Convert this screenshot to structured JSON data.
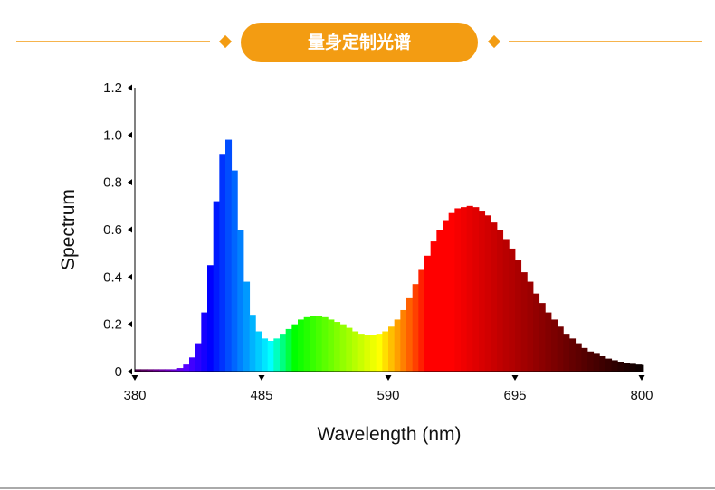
{
  "banner": {
    "title": "量身定制光谱"
  },
  "chart_data": {
    "type": "spectrum",
    "x_label": "Wavelength (nm)",
    "y_label": "Spectrum",
    "x": [
      380,
      385,
      390,
      395,
      400,
      405,
      410,
      415,
      420,
      425,
      430,
      435,
      440,
      445,
      450,
      455,
      460,
      465,
      470,
      475,
      480,
      485,
      490,
      495,
      500,
      505,
      510,
      515,
      520,
      525,
      530,
      535,
      540,
      545,
      550,
      555,
      560,
      565,
      570,
      575,
      580,
      585,
      590,
      595,
      600,
      605,
      610,
      615,
      620,
      625,
      630,
      635,
      640,
      645,
      650,
      655,
      660,
      665,
      670,
      675,
      680,
      685,
      690,
      695,
      700,
      705,
      710,
      715,
      720,
      725,
      730,
      735,
      740,
      745,
      750,
      755,
      760,
      765,
      770,
      775,
      780,
      785,
      790,
      795,
      800
    ],
    "values": [
      0.01,
      0.01,
      0.01,
      0.01,
      0.01,
      0.01,
      0.01,
      0.015,
      0.03,
      0.06,
      0.12,
      0.25,
      0.45,
      0.72,
      0.92,
      0.98,
      0.85,
      0.6,
      0.38,
      0.24,
      0.17,
      0.14,
      0.13,
      0.14,
      0.16,
      0.18,
      0.2,
      0.22,
      0.23,
      0.235,
      0.235,
      0.23,
      0.22,
      0.21,
      0.2,
      0.185,
      0.17,
      0.16,
      0.155,
      0.155,
      0.16,
      0.17,
      0.19,
      0.22,
      0.26,
      0.31,
      0.37,
      0.43,
      0.49,
      0.55,
      0.6,
      0.64,
      0.67,
      0.69,
      0.695,
      0.7,
      0.695,
      0.68,
      0.66,
      0.63,
      0.6,
      0.56,
      0.52,
      0.47,
      0.42,
      0.38,
      0.33,
      0.29,
      0.25,
      0.22,
      0.19,
      0.16,
      0.14,
      0.12,
      0.1,
      0.085,
      0.075,
      0.065,
      0.055,
      0.048,
      0.042,
      0.037,
      0.033,
      0.03,
      0.028
    ],
    "xlim": [
      380,
      800
    ],
    "xticks": [
      380,
      485,
      590,
      695,
      800
    ],
    "ylim": [
      0,
      1.2
    ],
    "yticks": [
      0,
      0.2,
      0.4,
      0.6,
      0.8,
      {
        "value": 1,
        "label": "1.0"
      },
      1.2
    ]
  }
}
